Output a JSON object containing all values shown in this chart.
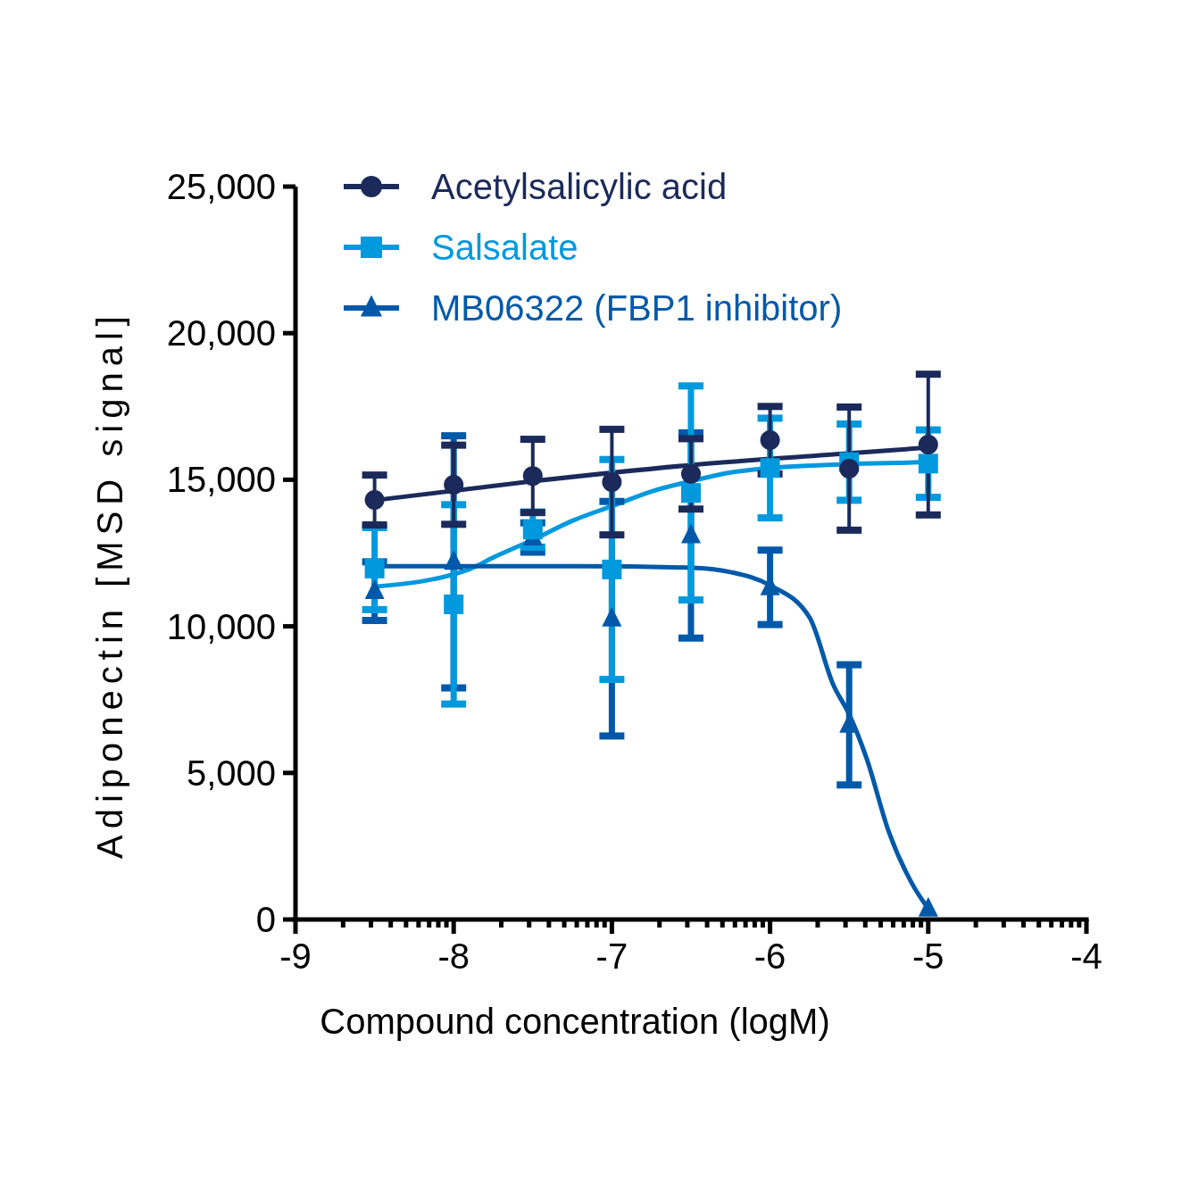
{
  "chart_data": {
    "type": "scatter",
    "xlabel": "Compound concentration (logM)",
    "ylabel": "Adiponectin [MSD signal]",
    "xlim": [
      -9,
      -4
    ],
    "ylim": [
      0,
      25000
    ],
    "xticks": [
      -9,
      {
        "value": -8.699,
        "label": null
      },
      {
        "value": -8.523,
        "label": null
      },
      {
        "value": -8.398,
        "label": null
      },
      {
        "value": -8.301,
        "label": null
      },
      {
        "value": -8.222,
        "label": null
      },
      {
        "value": -8.155,
        "label": null
      },
      {
        "value": -8.097,
        "label": null
      },
      {
        "value": -8.046,
        "label": null
      },
      -8,
      {
        "value": -7.699,
        "label": null
      },
      {
        "value": -7.523,
        "label": null
      },
      {
        "value": -7.398,
        "label": null
      },
      {
        "value": -7.301,
        "label": null
      },
      {
        "value": -7.222,
        "label": null
      },
      {
        "value": -7.155,
        "label": null
      },
      {
        "value": -7.097,
        "label": null
      },
      {
        "value": -7.046,
        "label": null
      },
      -7,
      {
        "value": -6.699,
        "label": null
      },
      {
        "value": -6.523,
        "label": null
      },
      {
        "value": -6.398,
        "label": null
      },
      {
        "value": -6.301,
        "label": null
      },
      {
        "value": -6.222,
        "label": null
      },
      {
        "value": -6.155,
        "label": null
      },
      {
        "value": -6.097,
        "label": null
      },
      {
        "value": -6.046,
        "label": null
      },
      -6,
      {
        "value": -5.699,
        "label": null
      },
      {
        "value": -5.523,
        "label": null
      },
      {
        "value": -5.398,
        "label": null
      },
      {
        "value": -5.301,
        "label": null
      },
      {
        "value": -5.222,
        "label": null
      },
      {
        "value": -5.155,
        "label": null
      },
      {
        "value": -5.097,
        "label": null
      },
      {
        "value": -5.046,
        "label": null
      },
      -5,
      {
        "value": -4.699,
        "label": null
      },
      {
        "value": -4.523,
        "label": null
      },
      {
        "value": -4.398,
        "label": null
      },
      {
        "value": -4.301,
        "label": null
      },
      {
        "value": -4.222,
        "label": null
      },
      {
        "value": -4.155,
        "label": null
      },
      {
        "value": -4.097,
        "label": null
      },
      {
        "value": -4.046,
        "label": null
      },
      -4
    ],
    "yticks": [
      0,
      {
        "value": 5000,
        "label": "5,000"
      },
      {
        "value": 10000,
        "label": "10,000"
      },
      {
        "value": 15000,
        "label": "15,000"
      },
      {
        "value": 20000,
        "label": "20,000"
      },
      {
        "value": 25000,
        "label": "25,000"
      }
    ],
    "grid": false,
    "legend": "top left",
    "series": [
      {
        "type": "line",
        "color": "#1b2a5a",
        "marker": "none",
        "line_style": "solid",
        "x": [
          -8.5,
          -7.5,
          -6.5,
          -5.5,
          -5
        ],
        "values": [
          14300,
          14950,
          15500,
          15900,
          16100
        ]
      },
      {
        "type": "line",
        "color": "#0099dd",
        "marker": "none",
        "line_style": "solid",
        "x": [
          -8.5,
          -7.9,
          -7.75,
          -7.5,
          -7.25,
          -7,
          -6.75,
          -6.5,
          -6.25,
          -6,
          -5.4,
          -5
        ],
        "values": [
          11350,
          11950,
          12350,
          12950,
          13600,
          14100,
          14600,
          14950,
          15250,
          15400,
          15550,
          15600
        ]
      },
      {
        "type": "line",
        "color": "#0059a8",
        "marker": "none",
        "line_style": "solid",
        "x": [
          -8.5,
          -7.2,
          -6.5,
          -6.25,
          -6,
          -5.75,
          -5.6,
          -5.5,
          -5.39,
          -5.25,
          -5.1,
          -5
        ],
        "values": [
          12050,
          12050,
          12000,
          11850,
          11400,
          10300,
          8000,
          7000,
          5500,
          3000,
          1200,
          370
        ]
      },
      {
        "name": "MB06322 (FBP1 inhibitor)",
        "color": "#0059a8",
        "marker": "triangle",
        "x": [
          -8.5,
          -8,
          -7.5,
          -7,
          -6.5,
          -6,
          -5.5,
          -5
        ],
        "values": [
          11200,
          12200,
          13030,
          10260,
          13100,
          11330,
          6640,
          370
        ],
        "errors": [
          1000,
          4300,
          500,
          4000,
          3500,
          1270,
          2050,
          null
        ]
      },
      {
        "name": "Salsalate",
        "color": "#0099dd",
        "marker": "square",
        "x": [
          -8.5,
          -8,
          -7.5,
          -7,
          -6.5,
          -6,
          -5.5,
          -5
        ],
        "values": [
          11970,
          10750,
          13300,
          11940,
          14550,
          15400,
          15600,
          15550
        ],
        "errors": [
          1400,
          3400,
          600,
          3750,
          3650,
          1700,
          1300,
          1150
        ]
      },
      {
        "name": "Acetylsalicylic acid",
        "color": "#1b2a5a",
        "marker": "circle",
        "x": [
          -8.5,
          -8,
          -7.5,
          -7,
          -6.5,
          -6,
          -5.5,
          -5
        ],
        "values": [
          14310,
          14830,
          15130,
          14920,
          15200,
          16350,
          15380,
          16200
        ],
        "errors": [
          850,
          1350,
          1250,
          1800,
          1200,
          1150,
          2100,
          2400
        ]
      }
    ]
  }
}
